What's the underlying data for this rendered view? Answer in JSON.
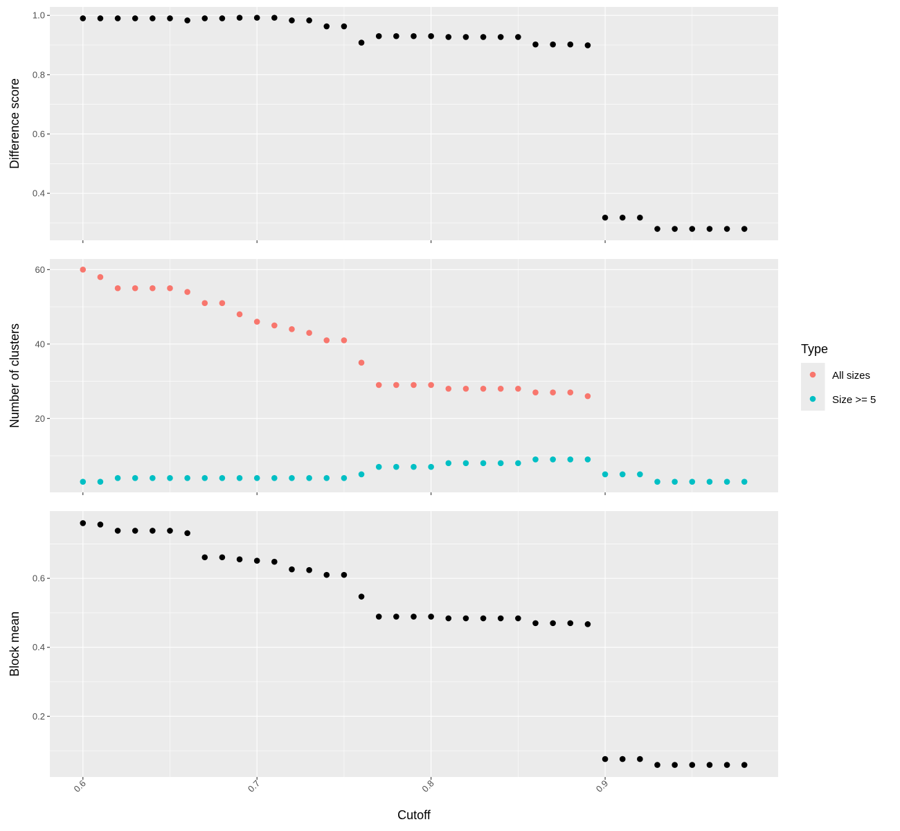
{
  "colors": {
    "panel_background": "#EBEBEB",
    "grid_major": "#FFFFFF",
    "tick_text": "#4D4D4D",
    "point_black": "#000000",
    "all_sizes": "#F8766D",
    "size_ge_5": "#00BFC4"
  },
  "legend": {
    "title": "Type",
    "items": [
      {
        "label": "All sizes",
        "color": "#F8766D"
      },
      {
        "label": "Size >= 5",
        "color": "#00BFC4"
      }
    ]
  },
  "x_axis": {
    "title": "Cutoff",
    "range": [
      0.581,
      0.9994
    ],
    "ticks": [
      0.6,
      0.7,
      0.8,
      0.9
    ],
    "tick_labels": [
      "0.6",
      "0.7",
      "0.8",
      "0.9"
    ],
    "tick_label_angle": -45
  },
  "chart_data": [
    {
      "type": "scatter",
      "ylabel": "Difference score",
      "ylim": [
        0.2415,
        1.0285
      ],
      "yticks": [
        0.4,
        0.6,
        0.8,
        1.0
      ],
      "ytick_labels": [
        "0.4",
        "0.6",
        "0.8",
        "1.0"
      ],
      "grid": true,
      "series": [
        {
          "color": "#000000",
          "x": [
            0.6,
            0.61,
            0.62,
            0.63,
            0.64,
            0.65,
            0.66,
            0.67,
            0.68,
            0.69,
            0.7,
            0.71,
            0.72,
            0.73,
            0.74,
            0.75,
            0.76,
            0.77,
            0.78,
            0.79,
            0.8,
            0.81,
            0.82,
            0.83,
            0.84,
            0.85,
            0.86,
            0.87,
            0.88,
            0.89,
            0.9,
            0.91,
            0.92,
            0.93,
            0.94,
            0.95,
            0.96,
            0.97,
            0.98
          ],
          "y": [
            0.99,
            0.99,
            0.99,
            0.99,
            0.99,
            0.99,
            0.983,
            0.99,
            0.99,
            0.992,
            0.992,
            0.992,
            0.983,
            0.983,
            0.963,
            0.963,
            0.908,
            0.93,
            0.93,
            0.93,
            0.93,
            0.927,
            0.927,
            0.927,
            0.927,
            0.927,
            0.902,
            0.902,
            0.902,
            0.899,
            0.318,
            0.318,
            0.318,
            0.28,
            0.28,
            0.28,
            0.28,
            0.28,
            0.28
          ]
        }
      ]
    },
    {
      "type": "scatter",
      "ylabel": "Number of clusters",
      "ylim": [
        0.15,
        62.85
      ],
      "yticks": [
        20,
        40,
        60
      ],
      "ytick_labels": [
        "20",
        "40",
        "60"
      ],
      "grid": true,
      "legend_position": "right",
      "series": [
        {
          "name": "All sizes",
          "color": "#F8766D",
          "x": [
            0.6,
            0.61,
            0.62,
            0.63,
            0.64,
            0.65,
            0.66,
            0.67,
            0.68,
            0.69,
            0.7,
            0.71,
            0.72,
            0.73,
            0.74,
            0.75,
            0.76,
            0.77,
            0.78,
            0.79,
            0.8,
            0.81,
            0.82,
            0.83,
            0.84,
            0.85,
            0.86,
            0.87,
            0.88,
            0.89
          ],
          "y": [
            60,
            58,
            55,
            55,
            55,
            55,
            54,
            51,
            51,
            48,
            46,
            45,
            44,
            43,
            41,
            41,
            35,
            29,
            29,
            29,
            29,
            28,
            28,
            28,
            28,
            28,
            27,
            27,
            27,
            26
          ]
        },
        {
          "name": "Size >= 5",
          "color": "#00BFC4",
          "x": [
            0.6,
            0.61,
            0.62,
            0.63,
            0.64,
            0.65,
            0.66,
            0.67,
            0.68,
            0.69,
            0.7,
            0.71,
            0.72,
            0.73,
            0.74,
            0.75,
            0.76,
            0.77,
            0.78,
            0.79,
            0.8,
            0.81,
            0.82,
            0.83,
            0.84,
            0.85,
            0.86,
            0.87,
            0.88,
            0.89,
            0.9,
            0.91,
            0.92,
            0.93,
            0.94,
            0.95,
            0.96,
            0.97,
            0.98
          ],
          "y": [
            3,
            3,
            4,
            4,
            4,
            4,
            4,
            4,
            4,
            4,
            4,
            4,
            4,
            4,
            4,
            4,
            5,
            7,
            7,
            7,
            7,
            8,
            8,
            8,
            8,
            8,
            9,
            9,
            9,
            9,
            5,
            5,
            5,
            3,
            3,
            3,
            3,
            3,
            3
          ]
        }
      ]
    },
    {
      "type": "scatter",
      "ylabel": "Block mean",
      "xlabel": "Cutoff",
      "ylim": [
        0.024,
        0.795
      ],
      "yticks": [
        0.2,
        0.4,
        0.6
      ],
      "ytick_labels": [
        "0.2",
        "0.4",
        "0.6"
      ],
      "grid": true,
      "series": [
        {
          "color": "#000000",
          "x": [
            0.6,
            0.61,
            0.62,
            0.63,
            0.64,
            0.65,
            0.66,
            0.67,
            0.68,
            0.69,
            0.7,
            0.71,
            0.72,
            0.73,
            0.74,
            0.75,
            0.76,
            0.77,
            0.78,
            0.79,
            0.8,
            0.81,
            0.82,
            0.83,
            0.84,
            0.85,
            0.86,
            0.87,
            0.88,
            0.89,
            0.9,
            0.91,
            0.92,
            0.93,
            0.94,
            0.95,
            0.96,
            0.97,
            0.98
          ],
          "y": [
            0.76,
            0.756,
            0.738,
            0.738,
            0.738,
            0.738,
            0.731,
            0.661,
            0.661,
            0.655,
            0.651,
            0.648,
            0.626,
            0.624,
            0.61,
            0.61,
            0.547,
            0.489,
            0.489,
            0.489,
            0.489,
            0.484,
            0.484,
            0.484,
            0.484,
            0.484,
            0.47,
            0.47,
            0.47,
            0.467,
            0.076,
            0.076,
            0.076,
            0.059,
            0.059,
            0.059,
            0.059,
            0.059,
            0.059
          ]
        }
      ]
    }
  ]
}
